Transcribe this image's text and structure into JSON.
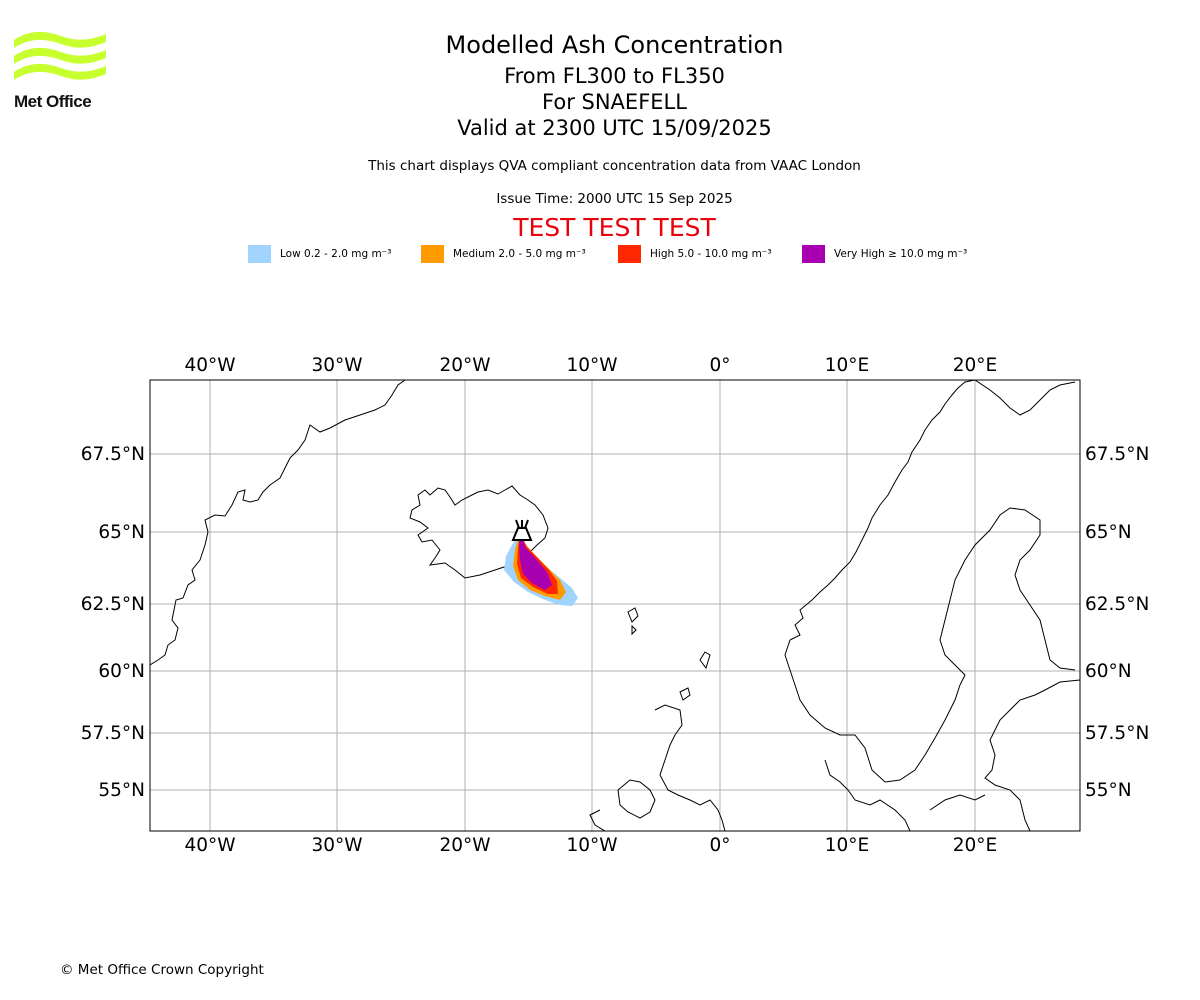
{
  "header": {
    "logo_text": "Met Office",
    "title": "Modelled Ash Concentration",
    "level_range": "From FL300 to FL350",
    "volcano": "For SNAEFELL",
    "valid_time": "Valid at 2300 UTC 15/09/2025",
    "compliance_note": "This chart displays QVA compliant concentration data from VAAC London",
    "issue_time": "Issue Time: 2000 UTC 15 Sep 2025",
    "test_banner": "TEST TEST TEST"
  },
  "legend": [
    {
      "label": "Low 0.2 - 2.0 mg m⁻³",
      "color": "#a0d4ff"
    },
    {
      "label": "Medium 2.0 - 5.0 mg m⁻³",
      "color": "#ff9a00"
    },
    {
      "label": "High 5.0 - 10.0 mg m⁻³",
      "color": "#ff2800"
    },
    {
      "label": "Very High ≥ 10.0 mg m⁻³",
      "color": "#a800b0"
    }
  ],
  "map": {
    "lon_range": [
      -44.5,
      28.3
    ],
    "lat_range": [
      53.5,
      70
    ],
    "lon_labels": [
      "40°W",
      "30°W",
      "20°W",
      "10°W",
      "0°",
      "10°E",
      "20°E"
    ],
    "lat_labels": [
      "67.5°N",
      "65°N",
      "62.5°N",
      "60°N",
      "57.5°N",
      "55°N"
    ],
    "grid": true,
    "volcano_symbol": "volcano-icon"
  },
  "footer": {
    "copyright": "© Met Office Crown Copyright"
  }
}
